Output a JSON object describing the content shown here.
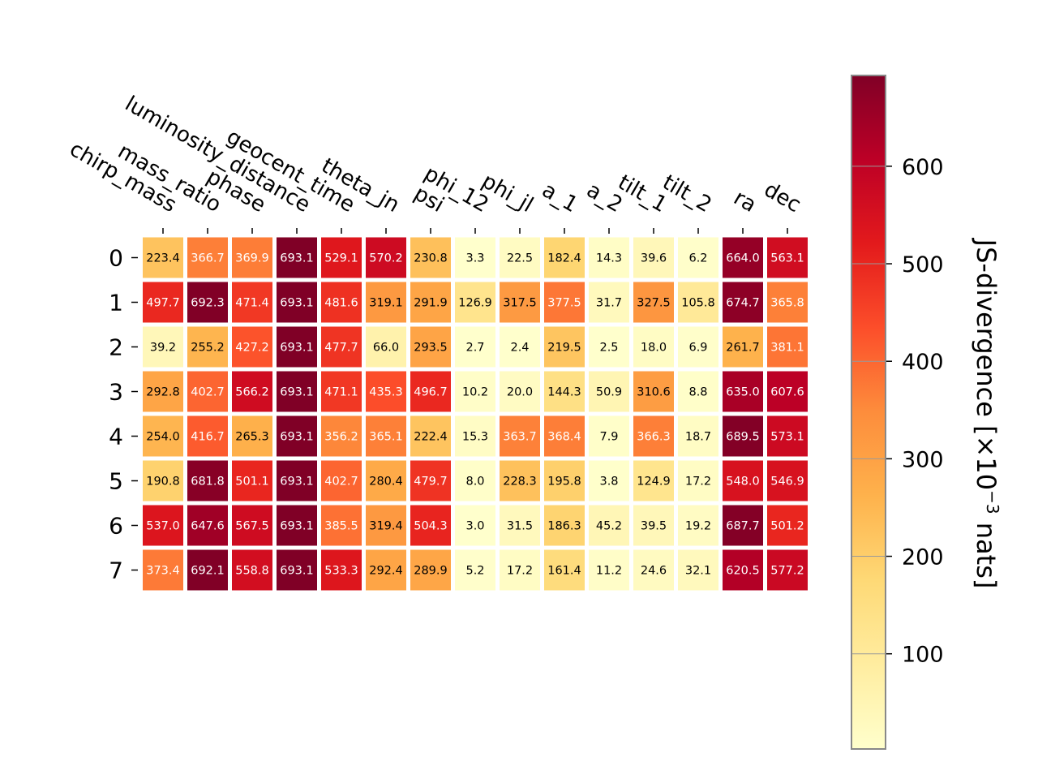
{
  "chart_data": {
    "type": "heatmap",
    "x_labels": [
      "chirp_mass",
      "mass_ratio",
      "phase",
      "luminosity_distance",
      "geocent_time",
      "theta_jn",
      "psi",
      "phi_12",
      "phi_jl",
      "a_1",
      "a_2",
      "tilt_1",
      "tilt_2",
      "ra",
      "dec"
    ],
    "y_labels": [
      "0",
      "1",
      "2",
      "3",
      "4",
      "5",
      "6",
      "7"
    ],
    "values": [
      [
        "223.4",
        "366.7",
        "369.9",
        "693.1",
        "529.1",
        "570.2",
        "230.8",
        "3.3",
        "22.5",
        "182.4",
        "14.3",
        "39.6",
        "6.2",
        "664.0",
        "563.1"
      ],
      [
        "497.7",
        "692.3",
        "471.4",
        "693.1",
        "481.6",
        "319.1",
        "291.9",
        "126.9",
        "317.5",
        "377.5",
        "31.7",
        "327.5",
        "105.8",
        "674.7",
        "365.8"
      ],
      [
        "39.2",
        "255.2",
        "427.2",
        "693.1",
        "477.7",
        "66.0",
        "293.5",
        "2.7",
        "2.4",
        "219.5",
        "2.5",
        "18.0",
        "6.9",
        "261.7",
        "381.1"
      ],
      [
        "292.8",
        "402.7",
        "566.2",
        "693.1",
        "471.1",
        "435.3",
        "496.7",
        "10.2",
        "20.0",
        "144.3",
        "50.9",
        "310.6",
        "8.8",
        "635.0",
        "607.6"
      ],
      [
        "254.0",
        "416.7",
        "265.3",
        "693.1",
        "356.2",
        "365.1",
        "222.4",
        "15.3",
        "363.7",
        "368.4",
        "7.9",
        "366.3",
        "18.7",
        "689.5",
        "573.1"
      ],
      [
        "190.8",
        "681.8",
        "501.1",
        "693.1",
        "402.7",
        "280.4",
        "479.7",
        "8.0",
        "228.3",
        "195.8",
        "3.8",
        "124.9",
        "17.2",
        "548.0",
        "546.9"
      ],
      [
        "537.0",
        "647.6",
        "567.5",
        "693.1",
        "385.5",
        "319.4",
        "504.3",
        "3.0",
        "31.5",
        "186.3",
        "45.2",
        "39.5",
        "19.2",
        "687.7",
        "501.2"
      ],
      [
        "373.4",
        "692.1",
        "558.8",
        "693.1",
        "533.3",
        "292.4",
        "289.9",
        "5.2",
        "17.2",
        "161.4",
        "11.2",
        "24.6",
        "32.1",
        "620.5",
        "577.2"
      ]
    ],
    "colorbar": {
      "label": "JS-divergence [×10",
      "label_superscript": "−3",
      "label_suffix": " nats]",
      "ticks": [
        "100",
        "200",
        "300",
        "400",
        "500",
        "600"
      ],
      "range": [
        2.4,
        693.1
      ],
      "colormap": "YlOrRd"
    },
    "colors": {
      "colormap_stops": [
        "#ffffcc",
        "#ffeda0",
        "#fed976",
        "#feb24c",
        "#fd8d3c",
        "#fc4e2a",
        "#e31a1c",
        "#bd0026",
        "#800026"
      ],
      "text_dark": "#000000",
      "text_light": "#ffffff",
      "cell_border": "#ffffff",
      "colorbar_frame": "#888888"
    }
  }
}
